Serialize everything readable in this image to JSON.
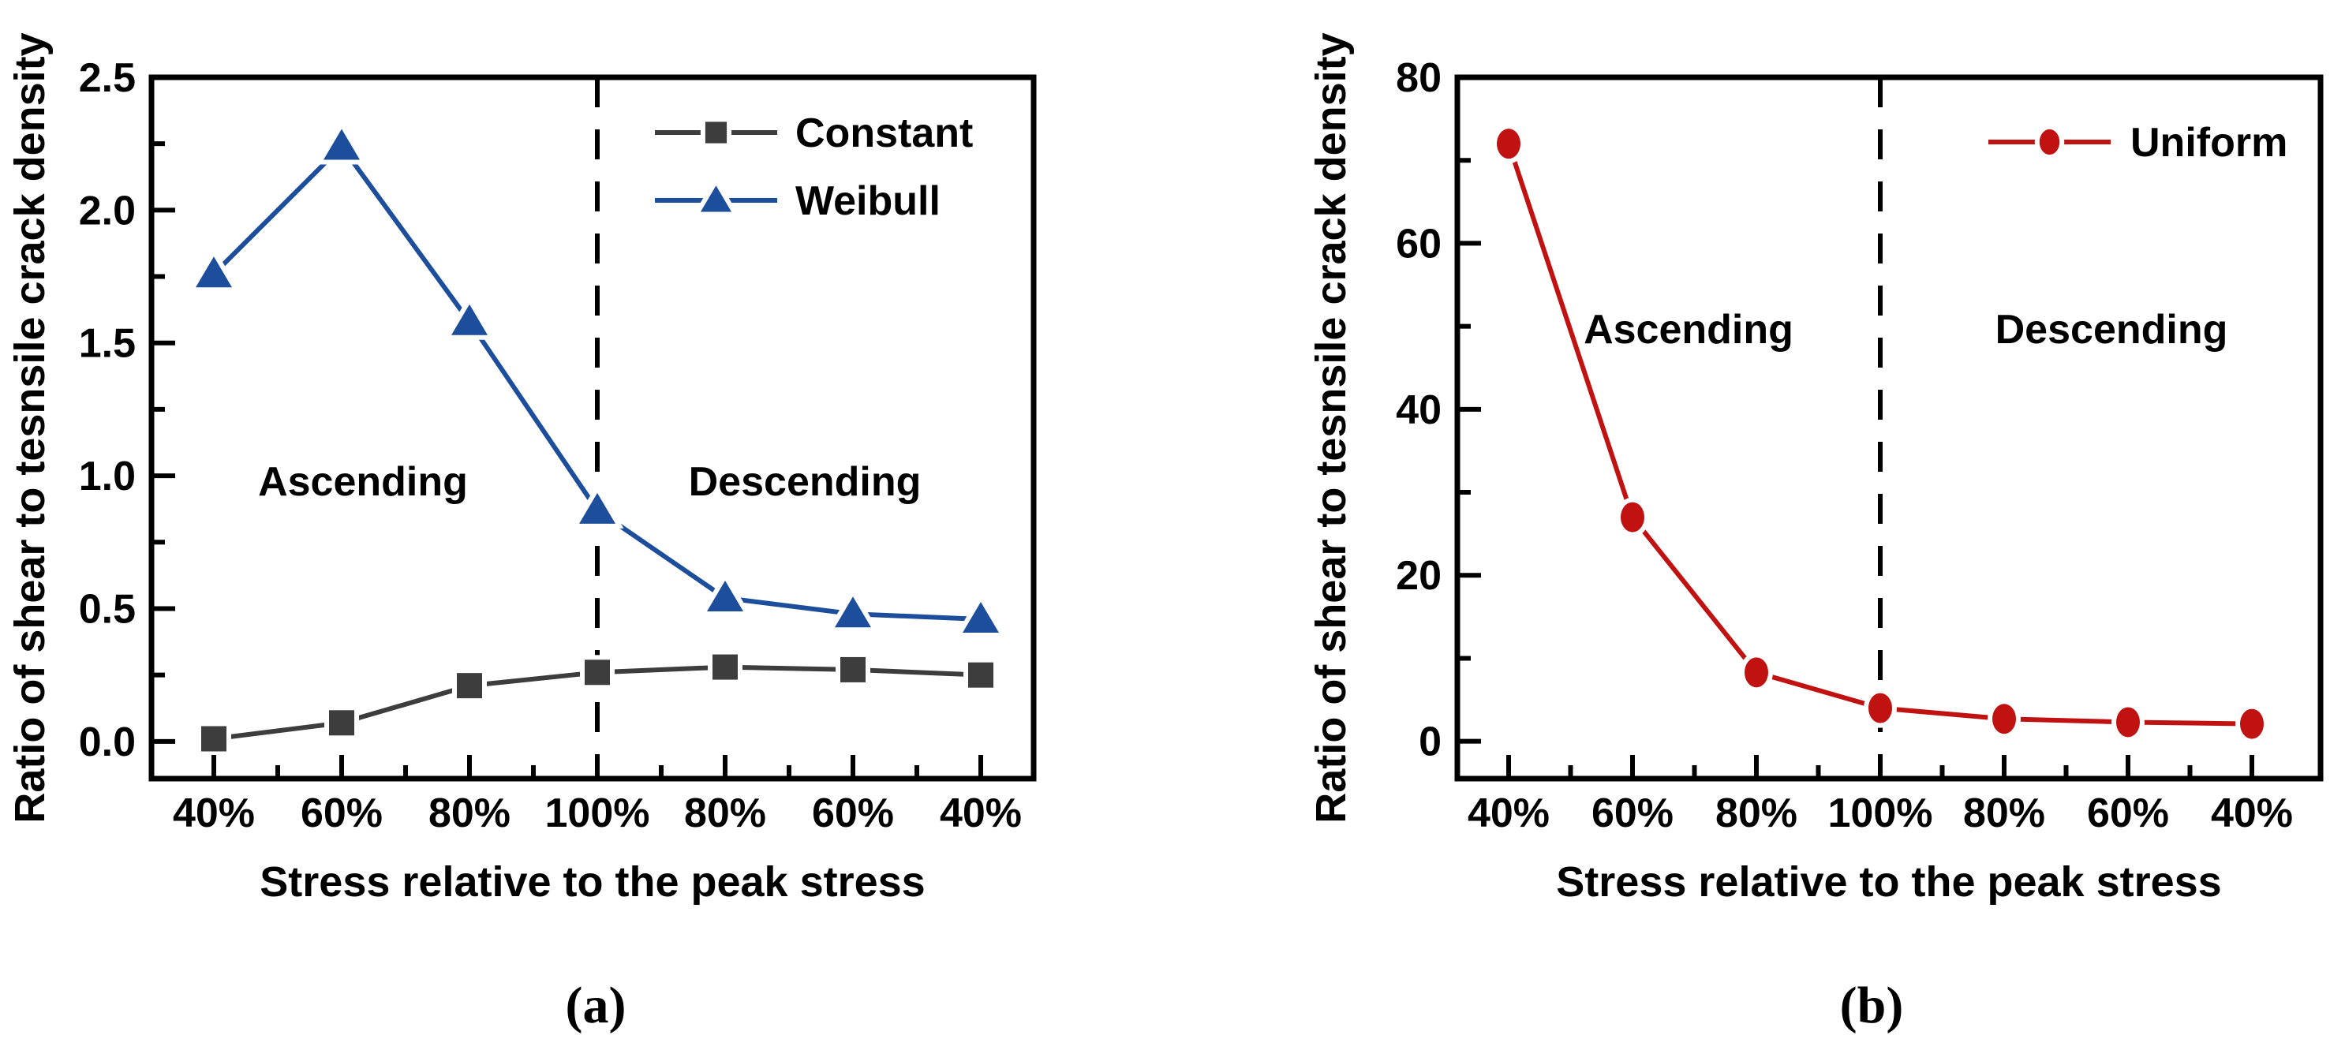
{
  "figure": {
    "background": "#ffffff",
    "axis_color": "#000000",
    "caption_a": "(a)",
    "caption_b": "(b)"
  },
  "chart_data": [
    {
      "id": "a",
      "type": "line",
      "caption": "(a)",
      "title": "",
      "xlabel": "Stress relative to the peak stress",
      "ylabel": "Ratio of shear to tesnsile crack density",
      "categories": [
        "40%",
        "60%",
        "80%",
        "100%",
        "80%",
        "60%",
        "40%"
      ],
      "ylim": [
        -0.14,
        2.5
      ],
      "yticks": [
        0.0,
        0.5,
        1.0,
        1.5,
        2.0,
        2.5
      ],
      "ytick_labels": [
        "0.0",
        "0.5",
        "1.0",
        "1.5",
        "2.0",
        "2.5"
      ],
      "minor_ytick_values": [
        0.25,
        0.75,
        1.25,
        1.75,
        2.25
      ],
      "grid": "off",
      "divider_category_index": 3,
      "legend_position": "top-right-inside",
      "annotations": [
        {
          "text": "Ascending"
        },
        {
          "text": "Descending"
        }
      ],
      "series": [
        {
          "name": "Constant",
          "color": "#3d3d3d",
          "marker": "square",
          "values": [
            0.01,
            0.07,
            0.21,
            0.26,
            0.28,
            0.27,
            0.25
          ]
        },
        {
          "name": "Weibull",
          "color": "#1d4e9b",
          "marker": "triangle",
          "values": [
            1.76,
            2.24,
            1.58,
            0.87,
            0.54,
            0.48,
            0.46
          ]
        }
      ]
    },
    {
      "id": "b",
      "type": "line",
      "caption": "(b)",
      "title": "",
      "xlabel": "Stress relative to the peak stress",
      "ylabel": "Ratio of shear to tesnsile crack density",
      "categories": [
        "40%",
        "60%",
        "80%",
        "100%",
        "80%",
        "60%",
        "40%"
      ],
      "ylim": [
        -4.5,
        80
      ],
      "yticks": [
        0,
        20,
        40,
        60,
        80
      ],
      "ytick_labels": [
        "0",
        "20",
        "40",
        "60",
        "80"
      ],
      "minor_ytick_values": [
        10,
        30,
        50,
        70
      ],
      "grid": "off",
      "divider_category_index": 3,
      "legend_position": "top-right-inside",
      "annotations": [
        {
          "text": "Ascending"
        },
        {
          "text": "Descending"
        }
      ],
      "series": [
        {
          "name": "Uniform",
          "color": "#c11212",
          "marker": "circle",
          "values": [
            72,
            27,
            8.3,
            4.0,
            2.7,
            2.3,
            2.1
          ]
        }
      ]
    }
  ]
}
